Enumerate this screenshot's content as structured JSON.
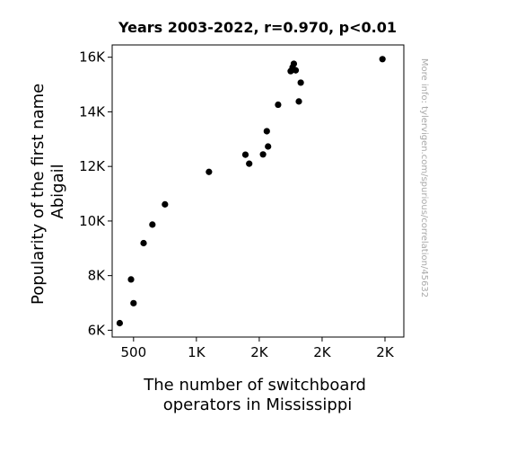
{
  "chart_data": {
    "type": "scatter",
    "title": "Years 2003-2022, r=0.970, p<0.01",
    "xlabel": [
      "The number of switchboard",
      "operators in Mississippi"
    ],
    "ylabel": [
      "Popularity of the first name",
      "Abigail"
    ],
    "side_note": "More info: tylervigen.com/spurious/correlation/45632",
    "xlim": [
      330,
      2650
    ],
    "ylim": [
      5750,
      16450
    ],
    "xticks": [
      500,
      1000,
      1500,
      2000,
      2500
    ],
    "xtick_labels": [
      "500",
      "1K",
      "2K",
      "2K",
      "2K"
    ],
    "yticks": [
      6000,
      8000,
      10000,
      12000,
      14000,
      16000
    ],
    "ytick_labels": [
      "6K",
      "8K",
      "10K",
      "12K",
      "14K",
      "16K"
    ],
    "grid": false,
    "point_color": "#000000",
    "points": [
      {
        "x": 390,
        "y": 6260
      },
      {
        "x": 480,
        "y": 7860
      },
      {
        "x": 500,
        "y": 6990
      },
      {
        "x": 580,
        "y": 9190
      },
      {
        "x": 650,
        "y": 9870
      },
      {
        "x": 750,
        "y": 10610
      },
      {
        "x": 1100,
        "y": 11800
      },
      {
        "x": 1390,
        "y": 12430
      },
      {
        "x": 1420,
        "y": 12100
      },
      {
        "x": 1530,
        "y": 12440
      },
      {
        "x": 1560,
        "y": 13290
      },
      {
        "x": 1570,
        "y": 12730
      },
      {
        "x": 1650,
        "y": 14260
      },
      {
        "x": 1750,
        "y": 15490
      },
      {
        "x": 1765,
        "y": 15630
      },
      {
        "x": 1775,
        "y": 15760
      },
      {
        "x": 1790,
        "y": 15520
      },
      {
        "x": 1815,
        "y": 14380
      },
      {
        "x": 1830,
        "y": 15070
      },
      {
        "x": 2480,
        "y": 15930
      }
    ]
  }
}
